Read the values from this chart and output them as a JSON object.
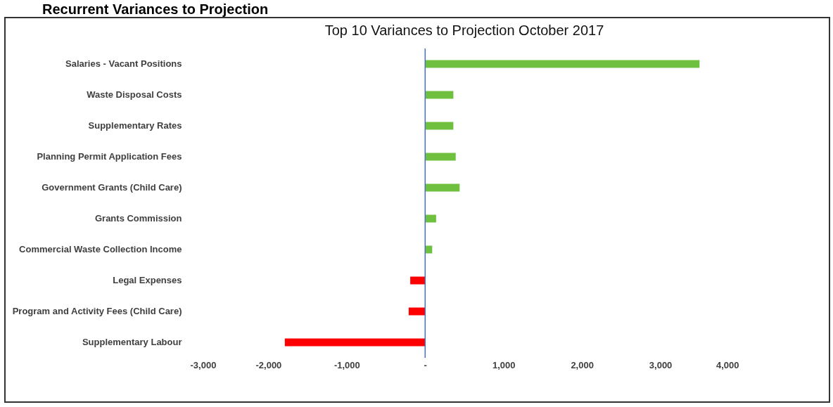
{
  "chart_data": {
    "type": "bar",
    "orientation": "horizontal",
    "title": "Top 10 Variances to Projection October 2017",
    "annotations": [
      "Recurrent Variances to Projection"
    ],
    "categories": [
      "Salaries - Vacant Positions",
      "Waste Disposal Costs",
      "Supplementary Rates",
      "Planning Permit Application Fees",
      "Government Grants (Child Care)",
      "Grants Commission",
      "Commercial Waste Collection Income",
      "Legal Expenses",
      "Program and Activity Fees (Child Care)",
      "Supplementary Labour"
    ],
    "values": [
      3500,
      360,
      360,
      390,
      440,
      140,
      90,
      -190,
      -210,
      -1790
    ],
    "colors": [
      "#70c040",
      "#70c040",
      "#70c040",
      "#70c040",
      "#70c040",
      "#70c040",
      "#70c040",
      "#ff0000",
      "#ff0000",
      "#ff0000"
    ],
    "xlim": [
      -3000,
      4000
    ],
    "xticks": [
      {
        "value": -3000,
        "label": "-3,000"
      },
      {
        "value": -2000,
        "label": "-2,000"
      },
      {
        "value": -1000,
        "label": "-1,000"
      },
      {
        "value": 0,
        "label": "-"
      },
      {
        "value": 1000,
        "label": "1,000"
      },
      {
        "value": 2000,
        "label": "2,000"
      },
      {
        "value": 3000,
        "label": "3,000"
      },
      {
        "value": 4000,
        "label": "4,000"
      }
    ],
    "ref_lines": [
      {
        "axis": "x",
        "value": 0,
        "color": "#4472c4"
      }
    ],
    "grid": false
  }
}
